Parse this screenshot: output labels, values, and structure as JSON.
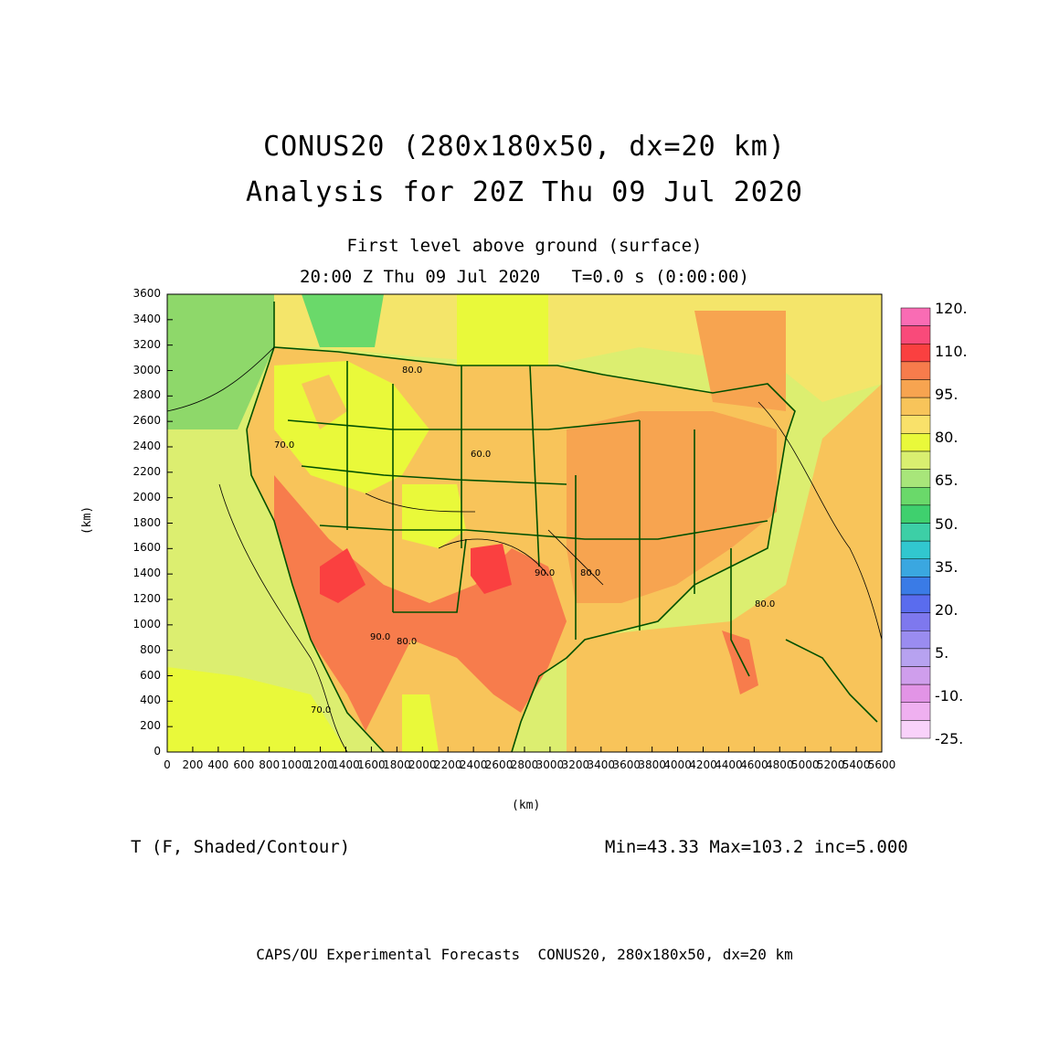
{
  "title_line1": "CONUS20 (280x180x50, dx=20 km)",
  "title_line2": "Analysis for 20Z Thu 09 Jul 2020",
  "subtitle_line1": "First level above ground (surface)",
  "subtitle_line2": "20:00 Z Thu 09 Jul 2020   T=0.0 s (0:00:00)",
  "y_axis_label": "(km)",
  "x_axis_label": "(km)",
  "y_ticks": [
    "3600",
    "3400",
    "3200",
    "3000",
    "2800",
    "2600",
    "2400",
    "2200",
    "2000",
    "1800",
    "1600",
    "1400",
    "1200",
    "1000",
    "800",
    "600",
    "400",
    "200",
    "0"
  ],
  "x_ticks": [
    "0",
    "200",
    "400",
    "600",
    "800",
    "1000",
    "1200",
    "1400",
    "1600",
    "1800",
    "2000",
    "2200",
    "2400",
    "2600",
    "2800",
    "3000",
    "3200",
    "3400",
    "3600",
    "3800",
    "4000",
    "4200",
    "4400",
    "4600",
    "4800",
    "5000",
    "5200",
    "5400",
    "5600"
  ],
  "variable_label": "T (F, Shaded/Contour)",
  "min_max_label": "Min=43.33 Max=103.2 inc=5.000",
  "footer": "CAPS/OU Experimental Forecasts  CONUS20, 280x180x50, dx=20 km",
  "colorbar": {
    "labels": [
      "120.",
      "110.",
      "95.",
      "80.",
      "65.",
      "50.",
      "35.",
      "20.",
      "5.",
      "-10.",
      "-25."
    ],
    "colors": [
      "#f96cb4",
      "#f94a7a",
      "#fa4040",
      "#f77c4c",
      "#f7a450",
      "#f8c45a",
      "#f9e16a",
      "#e9f93a",
      "#d9ef70",
      "#a8e67a",
      "#6ad96a",
      "#3fd06e",
      "#3dcfa6",
      "#31c7cf",
      "#3aa7e0",
      "#3a7be6",
      "#5a6cee",
      "#7e78ee",
      "#9a8cf0",
      "#b7a2f0",
      "#cf9eec",
      "#e294e6",
      "#efb0f0",
      "#f9d2fa"
    ]
  },
  "contour_labels": [
    "70.0",
    "80.0",
    "90.0",
    "60.0",
    "70.0",
    "80.0",
    "90.0",
    "80.0",
    "80.0"
  ],
  "colors": {
    "ocean_pacific": "#dcee70",
    "ocean_atlantic": "#f8c45a",
    "boundary": "#005000",
    "hot": "#f77c4c",
    "hottest": "#fa4040"
  }
}
